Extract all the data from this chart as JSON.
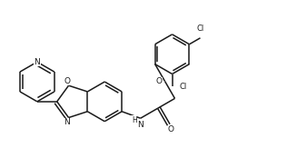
{
  "bg_color": "#ffffff",
  "line_color": "#1a1a1a",
  "line_width": 1.1,
  "font_size": 6.5,
  "figsize": [
    3.16,
    1.85
  ],
  "dpi": 100,
  "xlim": [
    0.0,
    3.16
  ],
  "ylim": [
    0.0,
    1.85
  ]
}
